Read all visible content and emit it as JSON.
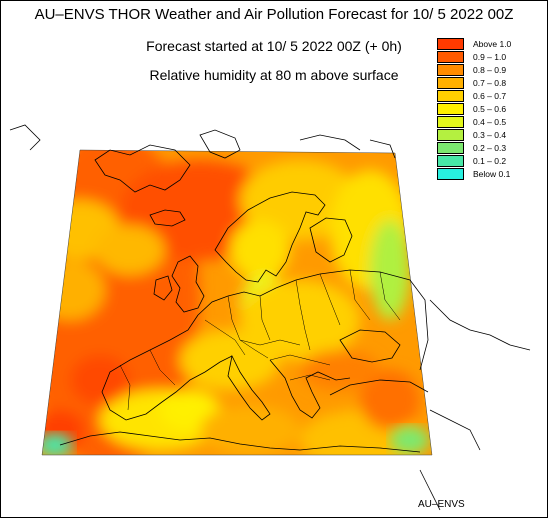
{
  "titles": {
    "line1": "AU–ENVS THOR Weather and Air Pollution Forecast for 10/ 5 2022  00Z",
    "line2": "Forecast started at 10/ 5 2022  00Z (+ 0h)",
    "line3": "Relative humidity at 80 m above surface"
  },
  "legend": [
    {
      "label": "Above   1.0",
      "color": "#ff3a00"
    },
    {
      "label": "0.9  –  1.0",
      "color": "#ff5a00"
    },
    {
      "label": "0.8  –  0.9",
      "color": "#ff8c00"
    },
    {
      "label": "0.7  –  0.8",
      "color": "#ffb000"
    },
    {
      "label": "0.6  –  0.7",
      "color": "#ffd000"
    },
    {
      "label": "0.5  –  0.6",
      "color": "#fff000"
    },
    {
      "label": "0.4  –  0.5",
      "color": "#e4f81c"
    },
    {
      "label": "0.3  –  0.4",
      "color": "#b4f040"
    },
    {
      "label": "0.2  –  0.3",
      "color": "#7ce870"
    },
    {
      "label": "0.1  –  0.2",
      "color": "#48e8a8"
    },
    {
      "label": "Below   0.1",
      "color": "#28f0e0"
    }
  ],
  "credit": "AU–ENVS"
}
